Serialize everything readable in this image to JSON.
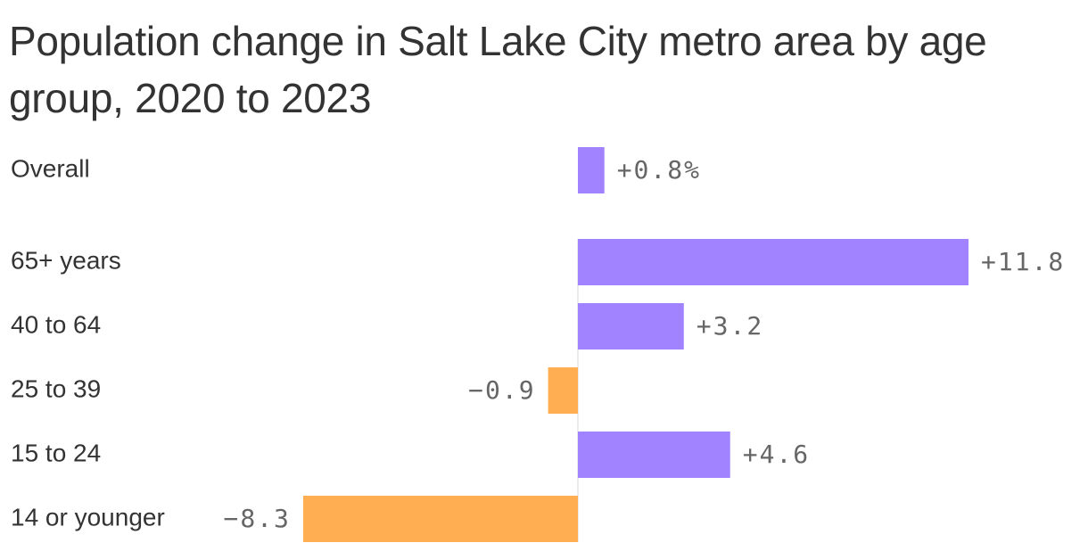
{
  "chart_data": {
    "type": "bar",
    "orientation": "horizontal",
    "title": "Population change in Salt Lake City metro area by age group, 2020 to 2023",
    "categories": [
      "Overall",
      "65+ years",
      "40 to 64",
      "25 to 39",
      "15 to 24",
      "14 or younger"
    ],
    "values": [
      0.8,
      11.8,
      3.2,
      -0.9,
      4.6,
      -8.3
    ],
    "value_labels": [
      "+0.8%",
      "+11.8",
      "+3.2",
      "−0.9",
      "+4.6",
      "−8.3"
    ],
    "unit": "%",
    "positive_color": "#a283ff",
    "negative_color": "#ffae52",
    "xlim": [
      -8.3,
      11.8
    ],
    "grid": false,
    "legend": "none"
  }
}
